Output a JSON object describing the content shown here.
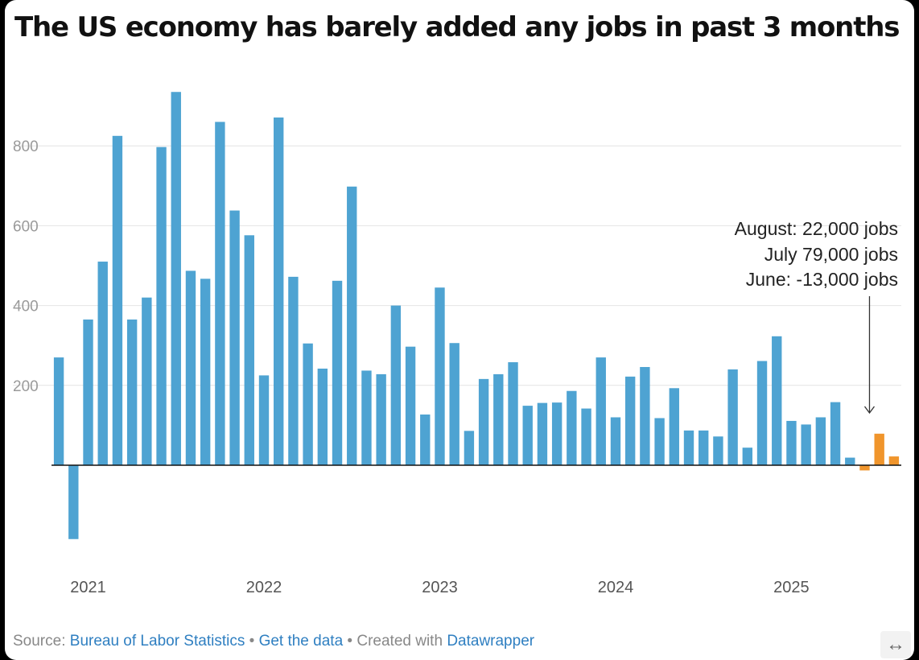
{
  "chart_data": {
    "type": "bar",
    "title": "The US economy has barely added any jobs in past 3 months",
    "xlabel": "",
    "ylabel": "",
    "ylim": [
      -190,
      950
    ],
    "yticks": [
      {
        "value": 200,
        "label": "200"
      },
      {
        "value": 400,
        "label": "400"
      },
      {
        "value": 600,
        "label": "600"
      },
      {
        "value": 800,
        "label": "800"
      }
    ],
    "year_labels": [
      {
        "label": "2021",
        "month_index": 2
      },
      {
        "label": "2022",
        "month_index": 14
      },
      {
        "label": "2023",
        "month_index": 26
      },
      {
        "label": "2024",
        "month_index": 38
      },
      {
        "label": "2025",
        "month_index": 50
      }
    ],
    "grid": true,
    "colors": {
      "default": "#4ea3d2",
      "highlight": "#f0952c"
    },
    "highlight_last": 3,
    "values": [
      270,
      -185,
      365,
      510,
      825,
      365,
      420,
      797,
      935,
      487,
      467,
      860,
      638,
      576,
      225,
      871,
      472,
      305,
      242,
      462,
      698,
      237,
      228,
      400,
      297,
      127,
      445,
      306,
      86,
      216,
      228,
      258,
      149,
      156,
      157,
      186,
      142,
      270,
      120,
      222,
      246,
      118,
      193,
      87,
      87,
      72,
      240,
      44,
      261,
      323,
      111,
      102,
      120,
      158,
      19,
      -13,
      79,
      22
    ],
    "annotation": {
      "lines": [
        "August: 22,000 jobs",
        "July 79,000 jobs",
        "June: -13,000 jobs"
      ]
    }
  },
  "footer": {
    "source_label": "Source: ",
    "source_link": "Bureau of Labor Statistics",
    "separator": " • ",
    "get_data": "Get the data",
    "created_with": "Created with ",
    "datawrapper": "Datawrapper"
  },
  "icons": {
    "resize": "resize-horizontal-icon"
  },
  "resize_glyph": "↔"
}
